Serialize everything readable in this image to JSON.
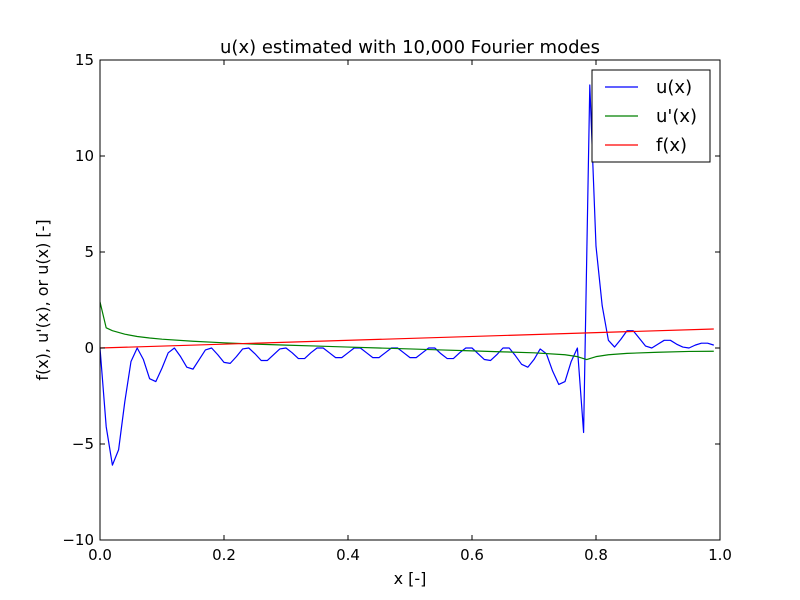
{
  "chart_data": {
    "type": "line",
    "title": "u(x) estimated with 10,000 Fourier modes",
    "xlabel": "x [-]",
    "ylabel": "f(x), u'(x), or u(x) [-]",
    "xlim": [
      0.0,
      1.0
    ],
    "ylim": [
      -10,
      15
    ],
    "xticks": [
      0.0,
      0.2,
      0.4,
      0.6,
      0.8,
      1.0
    ],
    "xtick_labels": [
      "0.0",
      "0.2",
      "0.4",
      "0.6",
      "0.8",
      "1.0"
    ],
    "yticks": [
      -10,
      -5,
      0,
      5,
      10,
      15
    ],
    "ytick_labels": [
      "−10",
      "−5",
      "0",
      "5",
      "10",
      "15"
    ],
    "grid": false,
    "legend_position": "top-right",
    "series": [
      {
        "name": "u(x)",
        "color": "#0000ff",
        "x": [
          0.0,
          0.01,
          0.02,
          0.03,
          0.04,
          0.05,
          0.06,
          0.07,
          0.08,
          0.09,
          0.1,
          0.11,
          0.12,
          0.13,
          0.14,
          0.15,
          0.16,
          0.17,
          0.18,
          0.19,
          0.2,
          0.21,
          0.22,
          0.23,
          0.24,
          0.25,
          0.26,
          0.27,
          0.28,
          0.29,
          0.3,
          0.31,
          0.32,
          0.33,
          0.34,
          0.35,
          0.36,
          0.37,
          0.38,
          0.39,
          0.4,
          0.41,
          0.42,
          0.43,
          0.44,
          0.45,
          0.46,
          0.47,
          0.48,
          0.49,
          0.5,
          0.51,
          0.52,
          0.53,
          0.54,
          0.55,
          0.56,
          0.57,
          0.58,
          0.59,
          0.6,
          0.61,
          0.62,
          0.63,
          0.64,
          0.65,
          0.66,
          0.67,
          0.68,
          0.69,
          0.7,
          0.71,
          0.72,
          0.73,
          0.74,
          0.75,
          0.76,
          0.77,
          0.78,
          0.79,
          0.8,
          0.81,
          0.82,
          0.83,
          0.84,
          0.85,
          0.86,
          0.87,
          0.88,
          0.89,
          0.9,
          0.91,
          0.92,
          0.93,
          0.94,
          0.95,
          0.96,
          0.97,
          0.98,
          0.99
        ],
        "y": [
          0.0,
          -4.1,
          -6.1,
          -5.3,
          -2.8,
          -0.7,
          0.0,
          -0.6,
          -1.6,
          -1.75,
          -1.05,
          -0.25,
          0.0,
          -0.45,
          -1.0,
          -1.1,
          -0.6,
          -0.1,
          0.0,
          -0.35,
          -0.75,
          -0.8,
          -0.45,
          -0.05,
          0.0,
          -0.3,
          -0.65,
          -0.65,
          -0.35,
          -0.05,
          0.0,
          -0.25,
          -0.55,
          -0.55,
          -0.25,
          0.0,
          0.0,
          -0.25,
          -0.5,
          -0.5,
          -0.25,
          0.0,
          0.0,
          -0.25,
          -0.5,
          -0.5,
          -0.25,
          0.0,
          0.0,
          -0.25,
          -0.5,
          -0.5,
          -0.25,
          0.0,
          0.0,
          -0.3,
          -0.55,
          -0.55,
          -0.25,
          0.0,
          0.0,
          -0.3,
          -0.6,
          -0.65,
          -0.35,
          0.0,
          0.0,
          -0.4,
          -0.85,
          -1.0,
          -0.6,
          -0.05,
          -0.3,
          -1.2,
          -1.9,
          -1.75,
          -0.7,
          0.0,
          -4.4,
          13.7,
          5.3,
          2.2,
          0.4,
          0.05,
          0.45,
          0.9,
          0.9,
          0.5,
          0.1,
          0.0,
          0.2,
          0.4,
          0.4,
          0.2,
          0.05,
          0.0,
          0.15,
          0.25,
          0.25,
          0.15
        ]
      },
      {
        "name": "u'(x)",
        "color": "#008000",
        "x": [
          0.0,
          0.01,
          0.02,
          0.04,
          0.06,
          0.08,
          0.1,
          0.15,
          0.2,
          0.25,
          0.3,
          0.35,
          0.4,
          0.45,
          0.5,
          0.55,
          0.6,
          0.65,
          0.7,
          0.75,
          0.77,
          0.785,
          0.79,
          0.8,
          0.82,
          0.85,
          0.9,
          0.95,
          0.99
        ],
        "y": [
          2.4,
          1.05,
          0.9,
          0.72,
          0.6,
          0.52,
          0.46,
          0.35,
          0.27,
          0.2,
          0.15,
          0.1,
          0.05,
          0.0,
          -0.05,
          -0.1,
          -0.15,
          -0.2,
          -0.25,
          -0.35,
          -0.45,
          -0.6,
          -0.55,
          -0.45,
          -0.35,
          -0.28,
          -0.22,
          -0.18,
          -0.17
        ]
      },
      {
        "name": "f(x)",
        "color": "#ff0000",
        "x": [
          0.0,
          0.99
        ],
        "y": [
          0.0,
          0.99
        ]
      }
    ]
  }
}
